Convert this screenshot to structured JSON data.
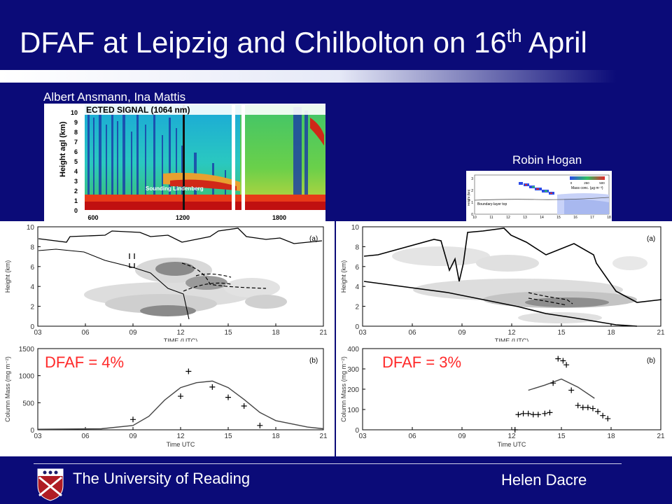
{
  "slide": {
    "title_main": "DFAF at Leipzig and Chilbolton on 16",
    "title_sup": "th",
    "title_end": " April",
    "credit_left": "Albert Ansmann, Ina Mattis",
    "credit_right": "Robin Hogan",
    "footer_left": "The University of Reading",
    "footer_right": "Helen Dacre"
  },
  "lidar": {
    "signal_label": "ECTED SIGNAL (1064 nm)",
    "ylabel": "Height agl (km)",
    "yticks": [
      "0",
      "1",
      "2",
      "3",
      "4",
      "5",
      "6",
      "7",
      "8",
      "9",
      "10"
    ],
    "xticks": [
      "600",
      "1200",
      "1800"
    ],
    "annotation": "Sounding Lindenberg"
  },
  "radar_inset": {
    "ylabel": "Height (km)",
    "yticks": [
      "0",
      "1",
      "2",
      "3"
    ],
    "xticks": [
      "10",
      "11",
      "12",
      "13",
      "14",
      "15",
      "16",
      "17",
      "18"
    ],
    "legend_title": "Mass conc. (μg m⁻³)",
    "legend_ticks": [
      "0",
      "250",
      "500"
    ],
    "boundary_label": "Boundary-layer top"
  },
  "chart_data": [
    {
      "type": "heatmap",
      "panel_label": "(a)",
      "ylabel": "Height (km)",
      "xlabel": "TIME (UTC)",
      "xticks": [
        "03",
        "06",
        "09",
        "12",
        "15",
        "18",
        "21"
      ],
      "yticks": [
        "0",
        "2",
        "4",
        "6",
        "8",
        "10"
      ],
      "xlim": [
        3,
        21
      ],
      "ylim": [
        0,
        10
      ]
    },
    {
      "type": "heatmap",
      "panel_label": "(a)",
      "ylabel": "Height (km)",
      "xlabel": "TIME (UTC)",
      "xticks": [
        "03",
        "06",
        "09",
        "12",
        "15",
        "18",
        "21"
      ],
      "yticks": [
        "0",
        "2",
        "4",
        "6",
        "8",
        "10"
      ],
      "xlim": [
        3,
        21
      ],
      "ylim": [
        0,
        10
      ]
    },
    {
      "type": "line",
      "panel_label": "(b)",
      "dfaf_label": "DFAF = 4%",
      "ylabel": "Column Mass (mg m⁻²)",
      "xlabel": "Time UTC",
      "xticks": [
        "03",
        "06",
        "09",
        "12",
        "15",
        "18",
        "21"
      ],
      "yticks": [
        "0",
        "500",
        "1000",
        "1500"
      ],
      "xlim": [
        3,
        21
      ],
      "ylim": [
        0,
        1500
      ],
      "line": {
        "x": [
          3,
          7,
          9,
          10,
          11,
          12,
          13,
          14,
          15,
          16,
          17,
          18,
          20,
          21
        ],
        "y": [
          10,
          20,
          80,
          250,
          550,
          780,
          870,
          900,
          780,
          560,
          320,
          170,
          50,
          20
        ]
      },
      "points": {
        "x": [
          9,
          12,
          12.5,
          14,
          15,
          16,
          17
        ],
        "y": [
          190,
          620,
          1080,
          790,
          600,
          440,
          80
        ]
      }
    },
    {
      "type": "line",
      "panel_label": "(b)",
      "dfaf_label": "DFAF = 3%",
      "ylabel": "Column Mass (mg m⁻²)",
      "xlabel": "Time UTC",
      "xticks": [
        "03",
        "06",
        "09",
        "12",
        "15",
        "18",
        "21"
      ],
      "yticks": [
        "0",
        "100",
        "200",
        "300",
        "400"
      ],
      "xlim": [
        3,
        21
      ],
      "ylim": [
        0,
        400
      ],
      "line": {
        "x": [
          13,
          14,
          15,
          16,
          17
        ],
        "y": [
          195,
          220,
          250,
          210,
          155
        ]
      },
      "points": {
        "x": [
          12.2,
          12.4,
          12.7,
          13,
          13.3,
          13.6,
          14,
          14.3,
          14.5,
          14.8,
          15.1,
          15.3,
          15.6,
          16,
          16.3,
          16.6,
          16.9,
          17.2,
          17.5,
          17.8
        ],
        "y": [
          0,
          75,
          80,
          80,
          75,
          75,
          80,
          85,
          230,
          350,
          340,
          320,
          195,
          120,
          110,
          110,
          105,
          90,
          70,
          55
        ]
      }
    }
  ]
}
